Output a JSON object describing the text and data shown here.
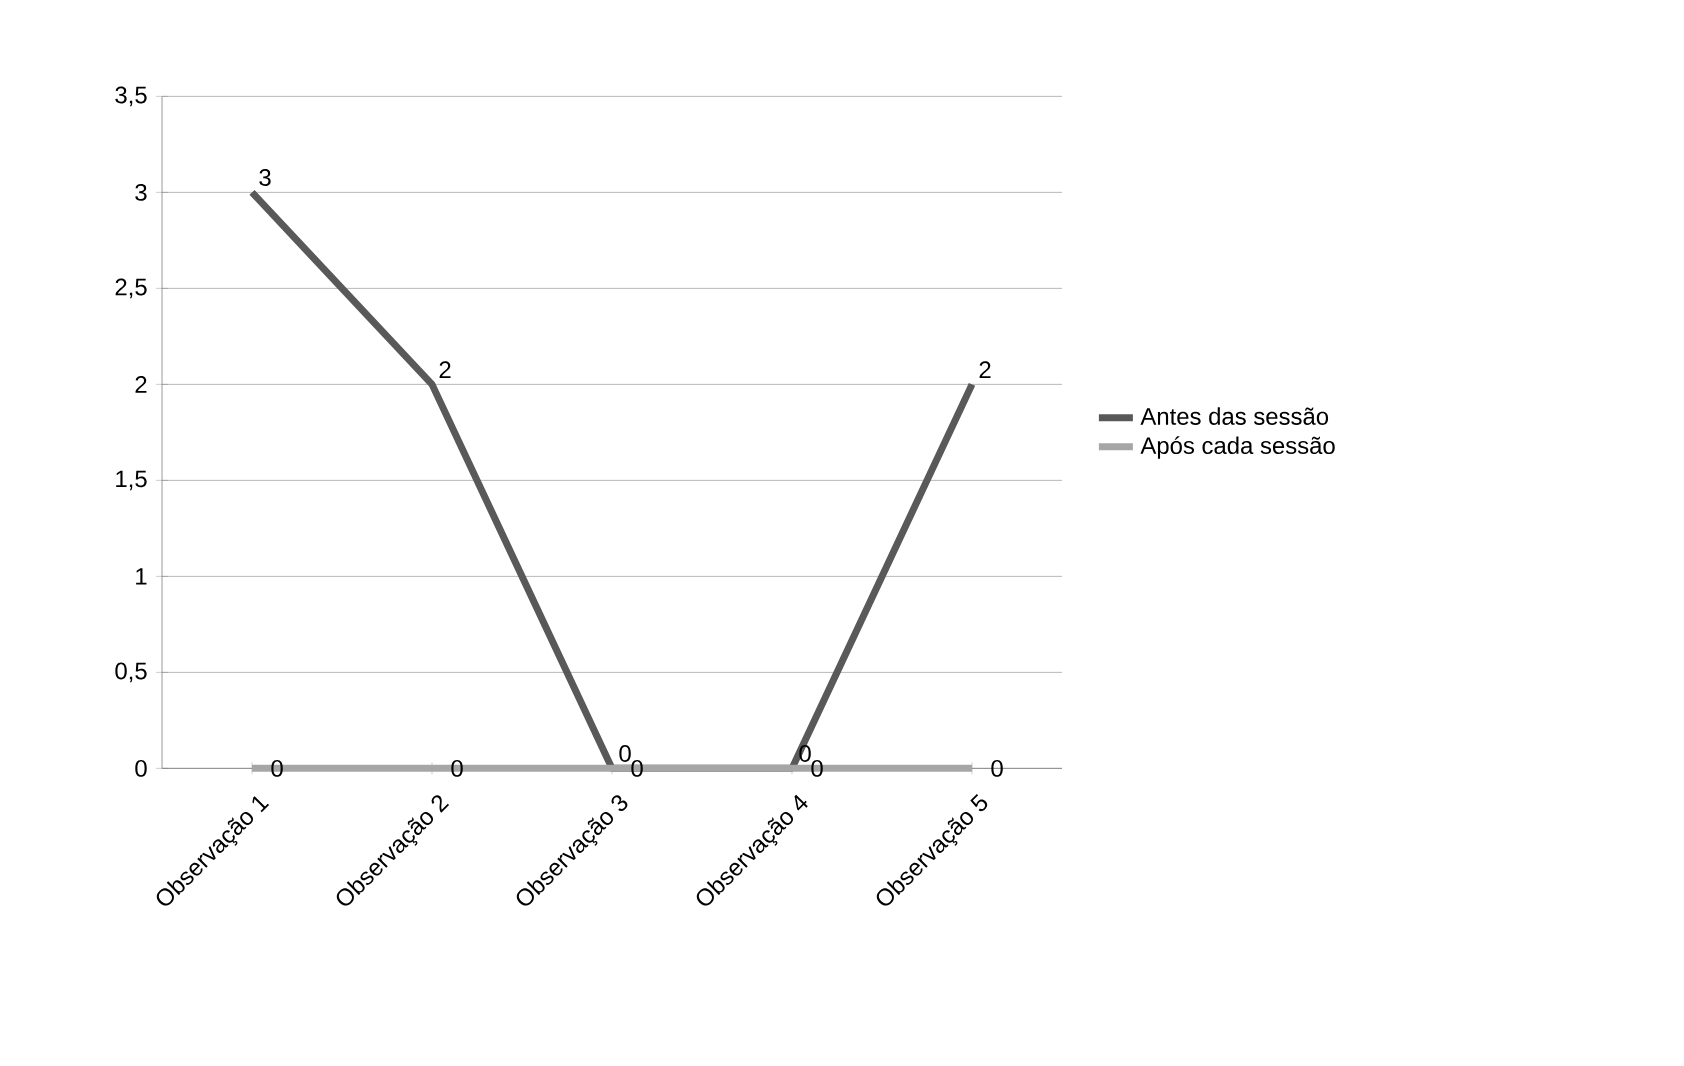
{
  "chart_data": {
    "type": "line",
    "categories": [
      "Observação 1",
      "Observação 2",
      "Observação 3",
      "Observação 4",
      "Observação 5"
    ],
    "series": [
      {
        "name": "Antes das sessão",
        "color": "#595959",
        "values": [
          3,
          2,
          0,
          0,
          2
        ]
      },
      {
        "name": "Após cada sessão",
        "color": "#a6a6a6",
        "values": [
          0,
          0,
          0,
          0,
          0
        ]
      }
    ],
    "ylim": [
      0,
      3.5
    ],
    "yticks": [
      0,
      {
        "value": 0.5,
        "label": "0,5"
      },
      1,
      {
        "value": 1.5,
        "label": "1,5"
      },
      2,
      {
        "value": 2.5,
        "label": "2,5"
      },
      3,
      {
        "value": 3.5,
        "label": "3,5"
      }
    ],
    "grid": "y",
    "legend": "right",
    "data_labels": true,
    "marker": "none",
    "line_style": "solid"
  }
}
